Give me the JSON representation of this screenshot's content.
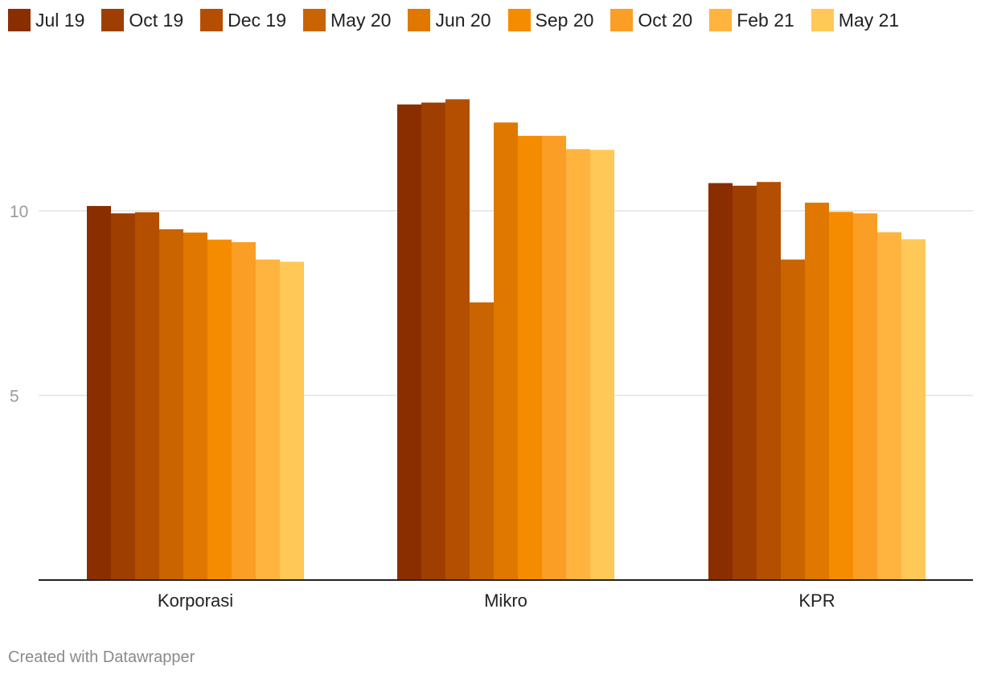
{
  "chart_data": {
    "type": "bar",
    "categories": [
      "Korporasi",
      "Mikro",
      "KPR"
    ],
    "series": [
      {
        "name": "Jul 19",
        "color": "#8a2e00",
        "values": [
          10.13,
          12.88,
          10.75
        ]
      },
      {
        "name": "Oct 19",
        "color": "#9e3e00",
        "values": [
          9.93,
          12.93,
          10.68
        ]
      },
      {
        "name": "Dec 19",
        "color": "#b44e00",
        "values": [
          9.96,
          13.02,
          10.78
        ]
      },
      {
        "name": "May 20",
        "color": "#c96400",
        "values": [
          9.5,
          7.52,
          8.68
        ]
      },
      {
        "name": "Jun 20",
        "color": "#e07800",
        "values": [
          9.41,
          12.39,
          10.22
        ]
      },
      {
        "name": "Sep 20",
        "color": "#f58c00",
        "values": [
          9.22,
          12.03,
          9.97
        ]
      },
      {
        "name": "Oct 20",
        "color": "#fb9e25",
        "values": [
          9.15,
          12.03,
          9.93
        ]
      },
      {
        "name": "Feb 21",
        "color": "#feb43f",
        "values": [
          8.68,
          11.67,
          9.42
        ]
      },
      {
        "name": "May 21",
        "color": "#ffc857",
        "values": [
          8.62,
          11.65,
          9.23
        ]
      }
    ],
    "yticks": [
      "5",
      "10"
    ],
    "ylim": [
      0,
      14.3
    ],
    "grid": true,
    "legend": "top-left"
  },
  "footer": {
    "credit": "Created with Datawrapper"
  }
}
